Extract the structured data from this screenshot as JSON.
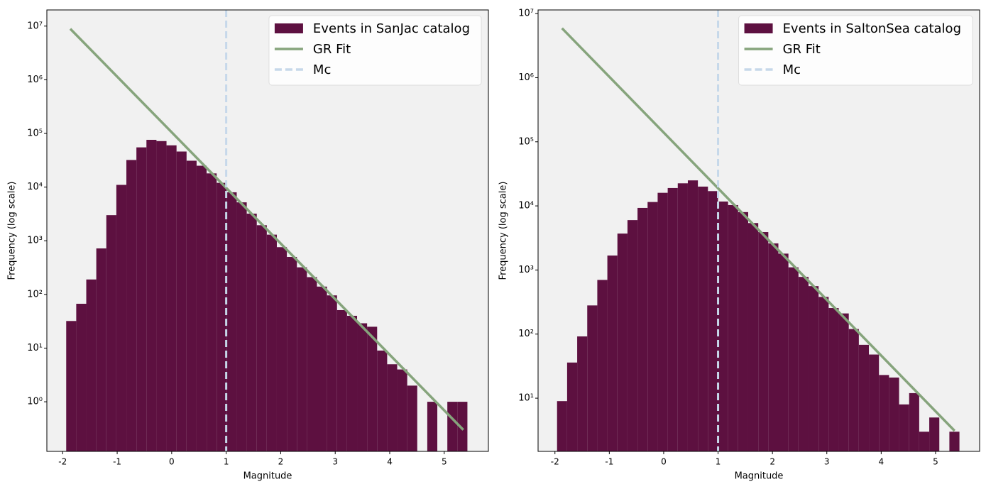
{
  "chart_data": [
    {
      "type": "histogram",
      "x_label": "Magnitude",
      "y_label": "Frequency (log scale)",
      "log_y": true,
      "background": "#f1f1f1",
      "legend": "upper right",
      "xlim": [
        -2.29,
        5.81
      ],
      "ylim": [
        0.119,
        20000000
      ],
      "xticks": [
        -2,
        -1,
        0,
        1,
        2,
        3,
        4,
        5
      ],
      "yticks": [
        {
          "value": 1,
          "label": "10⁰"
        },
        {
          "value": 10,
          "label": "10¹"
        },
        {
          "value": 100,
          "label": "10²"
        },
        {
          "value": 1000,
          "label": "10³"
        },
        {
          "value": 10000,
          "label": "10⁴"
        },
        {
          "value": 100000,
          "label": "10⁵"
        },
        {
          "value": 1000000,
          "label": "10⁶"
        },
        {
          "value": 10000000,
          "label": "10⁷"
        }
      ],
      "bins": [
        -1.935,
        -1.751,
        -1.567,
        -1.383,
        -1.199,
        -1.015,
        -0.831,
        -0.647,
        -0.463,
        -0.279,
        -0.095,
        0.089,
        0.273,
        0.457,
        0.641,
        0.825,
        1.009,
        1.193,
        1.377,
        1.561,
        1.745,
        1.929,
        2.113,
        2.297,
        2.481,
        2.665,
        2.849,
        3.033,
        3.217,
        3.401,
        3.585,
        3.769,
        3.953,
        4.137,
        4.321,
        4.505,
        4.689,
        4.873,
        5.057,
        5.241,
        5.425
      ],
      "series": [
        {
          "name": "Events in SanJac catalog",
          "color": "#5d1040",
          "values": [
            32,
            67,
            190,
            720,
            3000,
            11000,
            32000,
            55000,
            76000,
            72000,
            60000,
            46000,
            31000,
            25000,
            18000,
            12000,
            8000,
            5200,
            3200,
            1950,
            1300,
            760,
            500,
            320,
            210,
            140,
            96,
            51,
            40,
            29,
            25,
            9,
            5,
            4,
            2,
            0,
            1,
            0,
            1,
            1
          ]
        }
      ],
      "gr_fit": {
        "name": "GR Fit",
        "color": "#86a47c",
        "x": [
          -1.86,
          5.35
        ],
        "values": [
          8900000,
          0.3
        ]
      },
      "mc": {
        "name": "Mc",
        "color": "#c6d8ea",
        "value": 1
      }
    },
    {
      "type": "histogram",
      "x_label": "Magnitude",
      "y_label": "Frequency (log scale)",
      "log_y": true,
      "background": "#f1f1f1",
      "legend": "upper right",
      "xlim": [
        -2.31,
        5.81
      ],
      "ylim": [
        1.48,
        11400000
      ],
      "xticks": [
        -2,
        -1,
        0,
        1,
        2,
        3,
        4,
        5
      ],
      "yticks": [
        {
          "value": 10,
          "label": "10¹"
        },
        {
          "value": 100,
          "label": "10²"
        },
        {
          "value": 1000,
          "label": "10³"
        },
        {
          "value": 10000,
          "label": "10⁴"
        },
        {
          "value": 100000,
          "label": "10⁵"
        },
        {
          "value": 1000000,
          "label": "10⁶"
        },
        {
          "value": 10000000,
          "label": "10⁷"
        }
      ],
      "bins": [
        -1.961,
        -1.776,
        -1.591,
        -1.406,
        -1.221,
        -1.036,
        -0.851,
        -0.666,
        -0.481,
        -0.296,
        -0.111,
        0.074,
        0.259,
        0.444,
        0.629,
        0.814,
        0.999,
        1.184,
        1.369,
        1.554,
        1.739,
        1.924,
        2.109,
        2.294,
        2.479,
        2.664,
        2.849,
        3.034,
        3.219,
        3.404,
        3.589,
        3.774,
        3.959,
        4.144,
        4.329,
        4.514,
        4.699,
        4.884,
        5.069,
        5.254,
        5.439
      ],
      "series": [
        {
          "name": "Events in SaltonSea catalog",
          "color": "#5d1040",
          "values": [
            9,
            36,
            92,
            280,
            700,
            1680,
            3700,
            6000,
            9300,
            11500,
            16000,
            19000,
            22500,
            25000,
            20000,
            17000,
            11700,
            10300,
            8000,
            5400,
            3900,
            2600,
            1800,
            1100,
            780,
            560,
            380,
            255,
            210,
            120,
            68,
            48,
            23,
            21,
            8,
            12,
            3,
            5,
            0,
            3
          ]
        }
      ],
      "gr_fit": {
        "name": "GR Fit",
        "color": "#86a47c",
        "x": [
          -1.87,
          5.35
        ],
        "values": [
          5900000,
          3.1
        ]
      },
      "mc": {
        "name": "Mc",
        "color": "#c6d8ea",
        "value": 1
      }
    }
  ]
}
